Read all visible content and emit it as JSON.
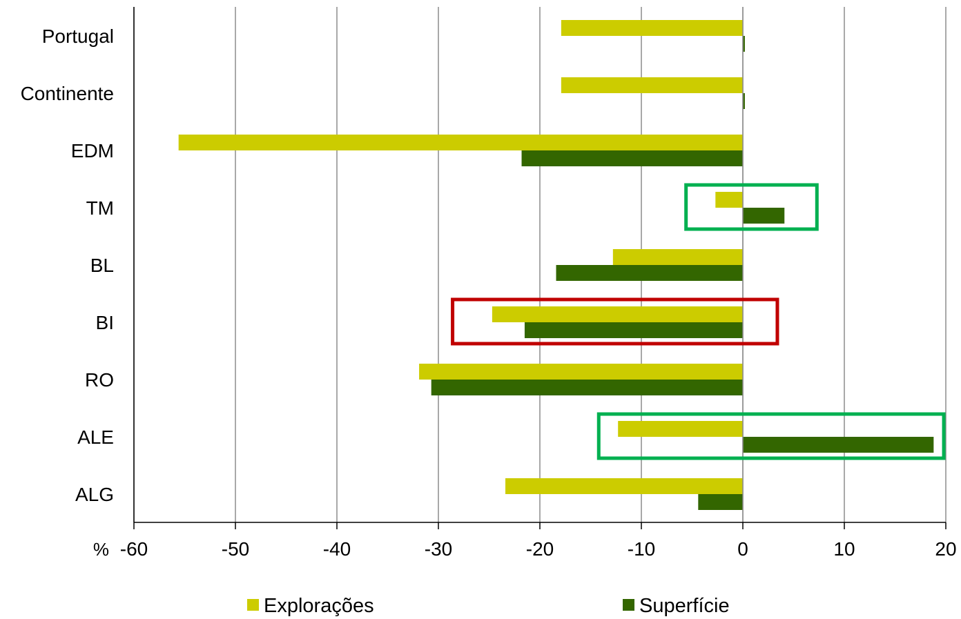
{
  "chart_data": {
    "type": "bar",
    "orientation": "horizontal",
    "categories": [
      "Portugal",
      "Continente",
      "EDM",
      "TM",
      "BL",
      "BI",
      "RO",
      "ALE",
      "ALG"
    ],
    "series": [
      {
        "name": "Explorações",
        "color": "#cccc00",
        "values": [
          -17.9,
          -17.9,
          -55.6,
          -2.7,
          -12.8,
          -24.7,
          -31.9,
          -12.3,
          -23.4
        ]
      },
      {
        "name": "Superfície",
        "color": "#336600",
        "values": [
          0.2,
          0.2,
          -21.8,
          4.1,
          -18.4,
          -21.5,
          -30.7,
          18.8,
          -4.4
        ]
      }
    ],
    "x_ticks": [
      -60,
      -50,
      -40,
      -30,
      -20,
      -10,
      0,
      10,
      20
    ],
    "xlim": [
      -60,
      20
    ],
    "x_unit_prefix": "%",
    "grid": "vertical",
    "legend_position": "bottom",
    "highlights": [
      {
        "color": "#00b050",
        "categories": [
          "TM"
        ],
        "x_range": [
          -5.6,
          7.3
        ]
      },
      {
        "color": "#c00000",
        "categories": [
          "BI"
        ],
        "x_range": [
          -28.6,
          3.4
        ]
      },
      {
        "color": "#00b050",
        "categories": [
          "ALE"
        ],
        "x_range": [
          -14.2,
          19.8
        ]
      }
    ]
  }
}
